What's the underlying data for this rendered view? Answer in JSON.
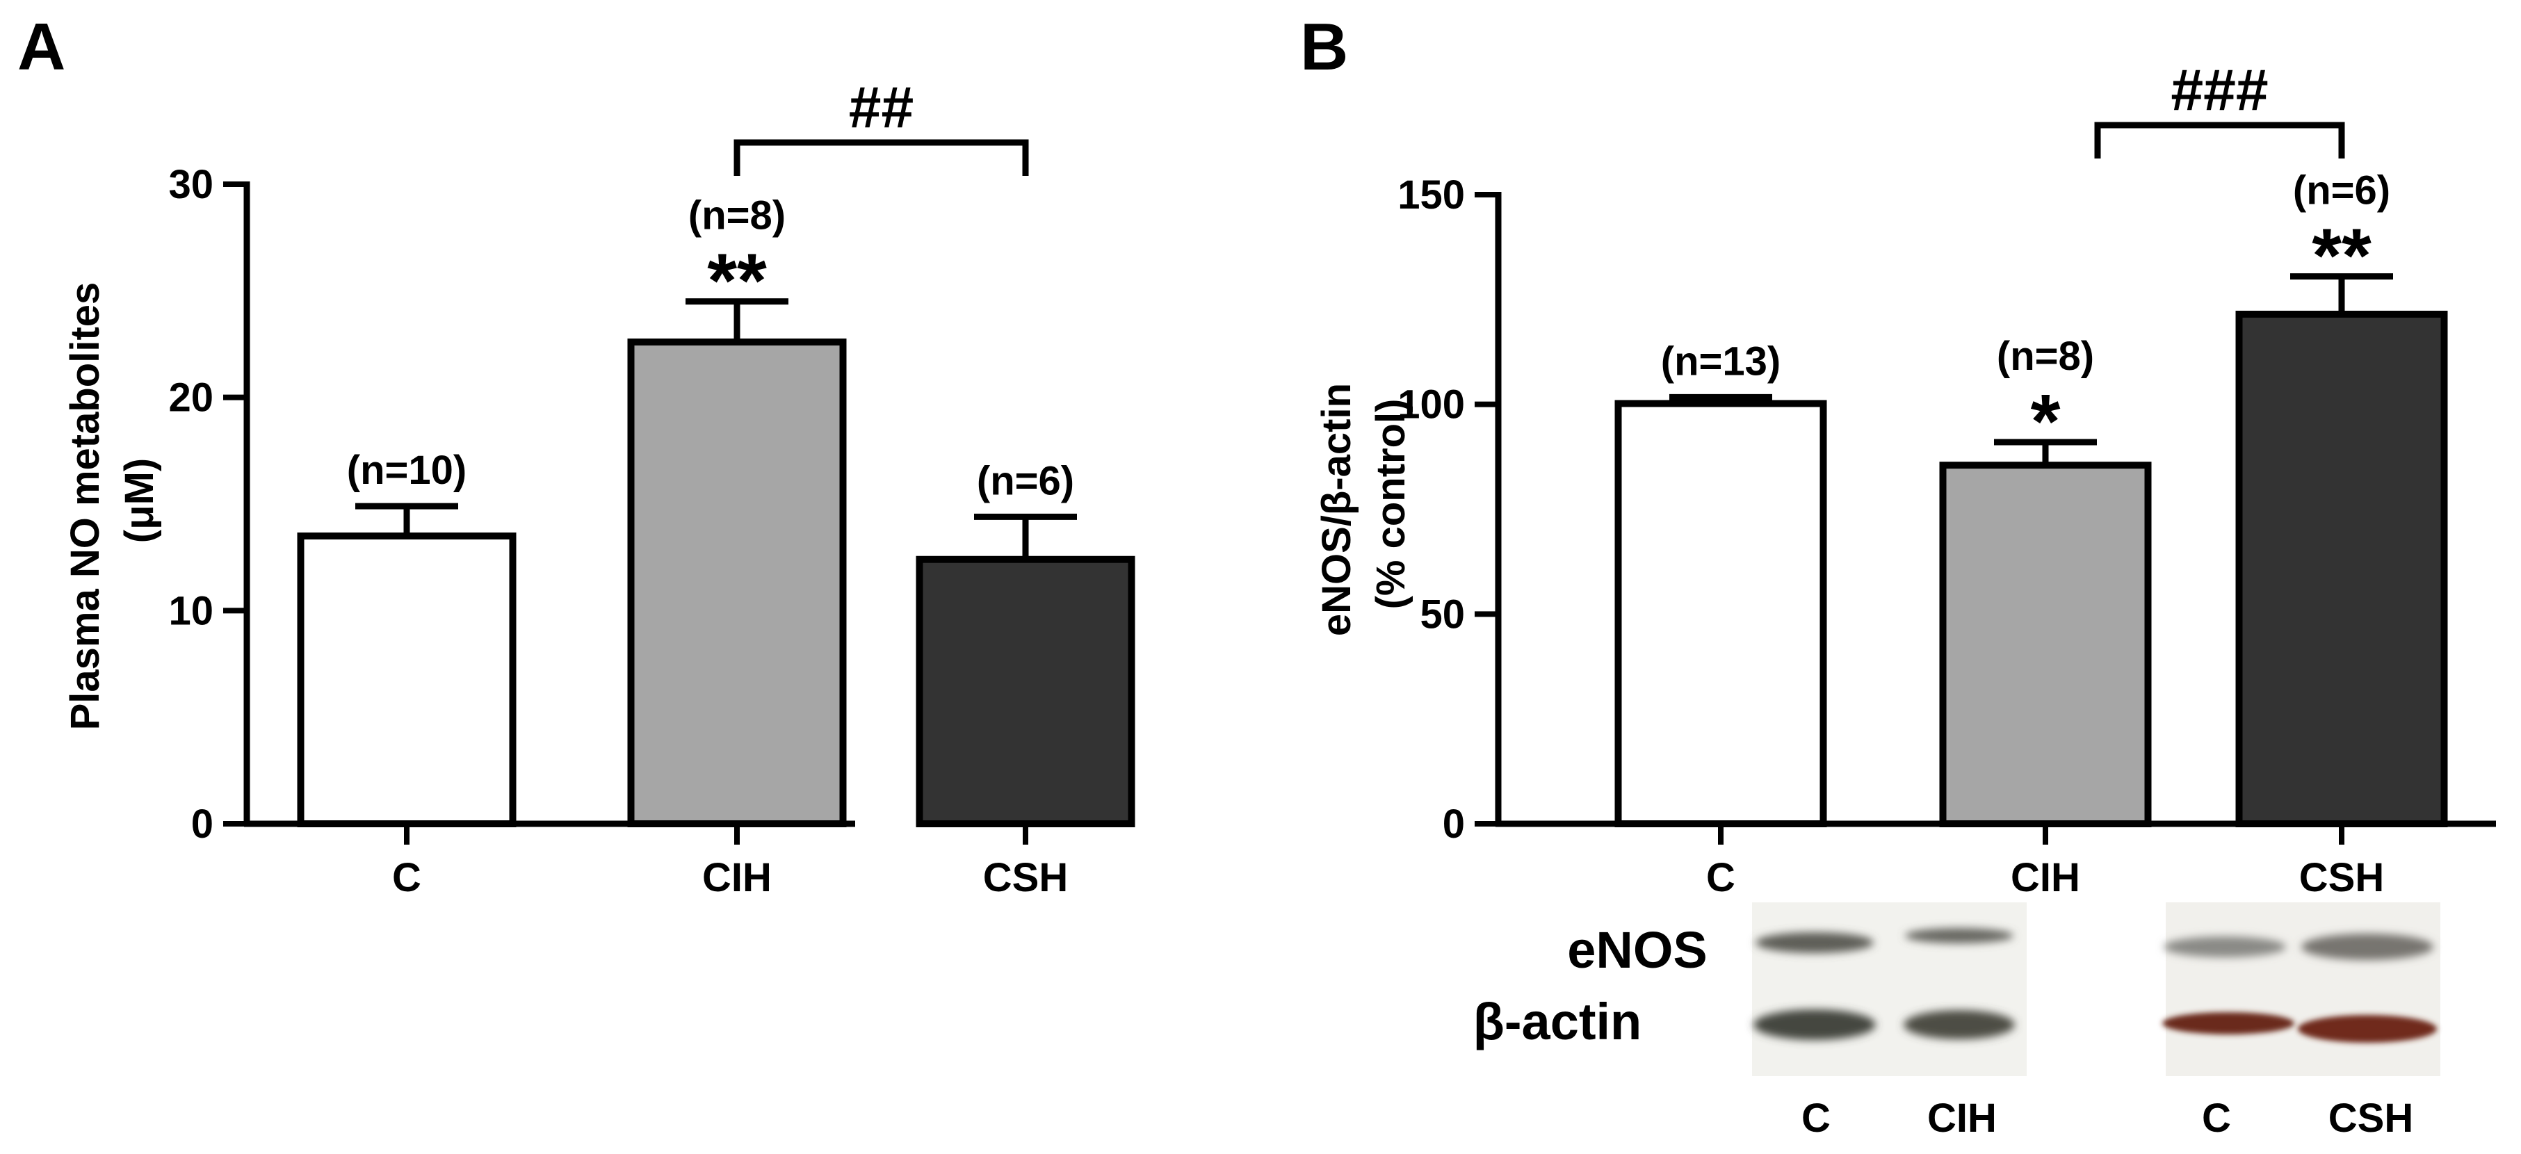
{
  "chart_data": [
    {
      "panel": "A",
      "type": "bar",
      "categories": [
        "C",
        "CIH",
        "CSH"
      ],
      "values": [
        13.5,
        22.6,
        12.4
      ],
      "errors": [
        1.4,
        1.9,
        2.0
      ],
      "n_labels": [
        "(n=10)",
        "(n=8)",
        "(n=6)"
      ],
      "significance": [
        "",
        "**",
        ""
      ],
      "bracket": {
        "from": "CIH",
        "to": "CSH",
        "label": "##"
      },
      "ylabel": [
        "Plasma NO metabolites",
        "(μM)"
      ],
      "ylim": [
        0,
        30
      ],
      "yticks": [
        0,
        10,
        20,
        30
      ],
      "bar_colors": [
        "#ffffff",
        "#a6a6a6",
        "#333333"
      ]
    },
    {
      "panel": "B",
      "type": "bar",
      "categories": [
        "C",
        "CIH",
        "CSH"
      ],
      "values": [
        100.2,
        85.5,
        121.5
      ],
      "errors": [
        1.5,
        5.5,
        9.0
      ],
      "n_labels": [
        "(n=13)",
        "(n=8)",
        "(n=6)"
      ],
      "significance": [
        "",
        "*",
        "**"
      ],
      "bracket": {
        "from": "CIH",
        "to": "CSH",
        "label": "###"
      },
      "ylabel": [
        "eNOS/β-actin",
        "(% control)"
      ],
      "ylim": [
        0,
        150
      ],
      "yticks": [
        0,
        50,
        100,
        150
      ],
      "bar_colors": [
        "#ffffff",
        "#a6a6a6",
        "#333333"
      ]
    }
  ],
  "blot": {
    "rows": [
      "eNOS",
      "β-actin"
    ],
    "lanes_left": [
      "C",
      "CIH"
    ],
    "lanes_right": [
      "C",
      "CSH"
    ]
  }
}
